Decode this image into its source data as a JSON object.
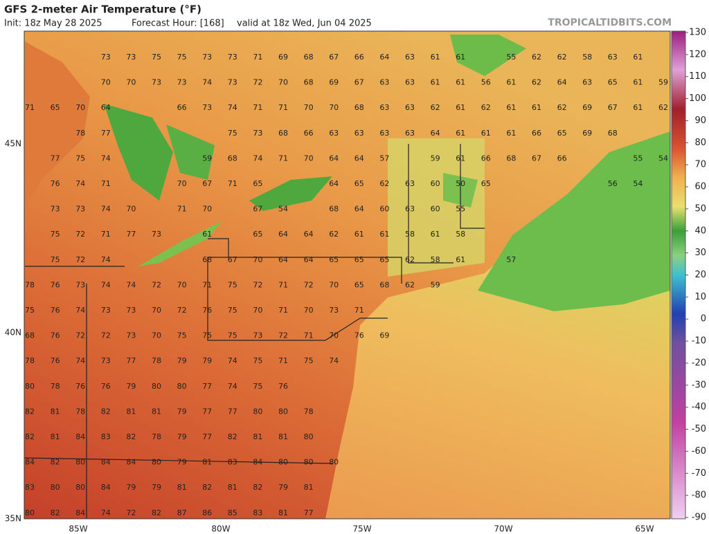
{
  "header": {
    "title": "GFS 2-meter Air Temperature (°F)",
    "init": "Init: 18z May 28 2025",
    "forecast_hour": "Forecast Hour: [168]",
    "valid": "valid at 18z Wed, Jun 04 2025",
    "source": "TROPICALTIDBITS.COM"
  },
  "map": {
    "latitude_labels": [
      "45N",
      "40N",
      "35N"
    ],
    "longitude_labels": [
      "85W",
      "80W",
      "75W",
      "70W",
      "65W"
    ],
    "temperature_rows": [
      [
        null,
        null,
        null,
        73,
        73,
        75,
        75,
        73,
        73,
        71,
        69,
        68,
        67,
        66,
        64,
        63,
        61,
        61,
        null,
        55,
        62,
        62,
        58,
        63,
        61,
        null
      ],
      [
        null,
        null,
        null,
        70,
        70,
        73,
        73,
        74,
        73,
        72,
        70,
        68,
        69,
        67,
        63,
        63,
        61,
        61,
        56,
        61,
        62,
        64,
        63,
        65,
        61,
        59
      ],
      [
        71,
        65,
        70,
        64,
        null,
        null,
        66,
        73,
        74,
        71,
        71,
        70,
        70,
        68,
        63,
        63,
        62,
        61,
        62,
        61,
        61,
        62,
        69,
        67,
        61,
        62
      ],
      [
        null,
        null,
        78,
        77,
        null,
        null,
        null,
        null,
        75,
        73,
        68,
        66,
        63,
        63,
        63,
        63,
        64,
        61,
        61,
        61,
        66,
        65,
        69,
        68,
        null,
        null
      ],
      [
        null,
        77,
        75,
        74,
        null,
        null,
        null,
        59,
        68,
        74,
        71,
        70,
        64,
        64,
        57,
        null,
        59,
        61,
        66,
        68,
        67,
        66,
        null,
        null,
        55,
        54
      ],
      [
        null,
        76,
        74,
        71,
        null,
        null,
        70,
        67,
        71,
        65,
        null,
        null,
        64,
        65,
        62,
        63,
        60,
        50,
        65,
        null,
        null,
        null,
        null,
        56,
        54,
        null
      ],
      [
        null,
        73,
        73,
        74,
        70,
        null,
        71,
        70,
        null,
        67,
        54,
        null,
        68,
        64,
        60,
        63,
        60,
        55,
        null,
        null,
        null,
        null,
        null,
        null,
        null,
        null
      ],
      [
        null,
        75,
        72,
        71,
        77,
        73,
        null,
        61,
        null,
        65,
        64,
        64,
        62,
        61,
        61,
        58,
        61,
        58,
        null,
        null,
        null,
        null,
        null,
        null,
        null,
        null
      ],
      [
        null,
        75,
        72,
        74,
        null,
        null,
        null,
        68,
        67,
        70,
        64,
        64,
        65,
        65,
        65,
        62,
        58,
        61,
        null,
        57,
        null,
        null,
        null,
        null,
        null,
        null
      ],
      [
        78,
        76,
        73,
        74,
        74,
        72,
        70,
        71,
        75,
        72,
        71,
        72,
        70,
        65,
        68,
        62,
        59,
        null,
        null,
        null,
        null,
        null,
        null,
        null,
        null,
        null
      ],
      [
        75,
        76,
        74,
        73,
        73,
        70,
        72,
        76,
        75,
        70,
        71,
        70,
        73,
        71,
        null,
        null,
        null,
        null,
        null,
        null,
        null,
        null,
        null,
        null,
        null,
        null
      ],
      [
        68,
        76,
        72,
        72,
        73,
        70,
        75,
        75,
        75,
        73,
        72,
        71,
        70,
        76,
        69,
        null,
        null,
        null,
        null,
        null,
        null,
        null,
        null,
        null,
        null,
        null
      ],
      [
        78,
        76,
        74,
        73,
        77,
        78,
        79,
        79,
        74,
        75,
        71,
        75,
        74,
        null,
        null,
        null,
        null,
        null,
        null,
        null,
        null,
        null,
        null,
        null,
        null,
        null
      ],
      [
        80,
        78,
        76,
        76,
        79,
        80,
        80,
        77,
        74,
        75,
        76,
        null,
        null,
        null,
        null,
        null,
        null,
        null,
        null,
        null,
        null,
        null,
        null,
        null,
        null,
        null
      ],
      [
        82,
        81,
        78,
        82,
        81,
        81,
        79,
        77,
        77,
        80,
        80,
        78,
        null,
        null,
        null,
        null,
        null,
        null,
        null,
        null,
        null,
        null,
        null,
        null,
        null,
        null
      ],
      [
        82,
        81,
        84,
        83,
        82,
        78,
        79,
        77,
        82,
        81,
        81,
        80,
        null,
        null,
        null,
        null,
        null,
        null,
        null,
        null,
        null,
        null,
        null,
        null,
        null,
        null
      ],
      [
        84,
        82,
        80,
        84,
        84,
        80,
        79,
        81,
        83,
        84,
        80,
        80,
        80,
        null,
        null,
        null,
        null,
        null,
        null,
        null,
        null,
        null,
        null,
        null,
        null,
        null
      ],
      [
        83,
        80,
        80,
        84,
        79,
        79,
        81,
        82,
        81,
        82,
        79,
        81,
        null,
        null,
        null,
        null,
        null,
        null,
        null,
        null,
        null,
        null,
        null,
        null,
        null,
        null
      ],
      [
        80,
        82,
        84,
        74,
        72,
        82,
        87,
        86,
        85,
        83,
        81,
        77,
        null,
        null,
        null,
        null,
        null,
        null,
        null,
        null,
        null,
        null,
        null,
        null,
        null,
        null
      ]
    ]
  },
  "colorbar": {
    "ticks": [
      130,
      120,
      110,
      100,
      90,
      80,
      70,
      60,
      50,
      40,
      30,
      20,
      10,
      0,
      -10,
      -20,
      -30,
      -40,
      -50,
      -60,
      -70,
      -80,
      -90
    ]
  }
}
